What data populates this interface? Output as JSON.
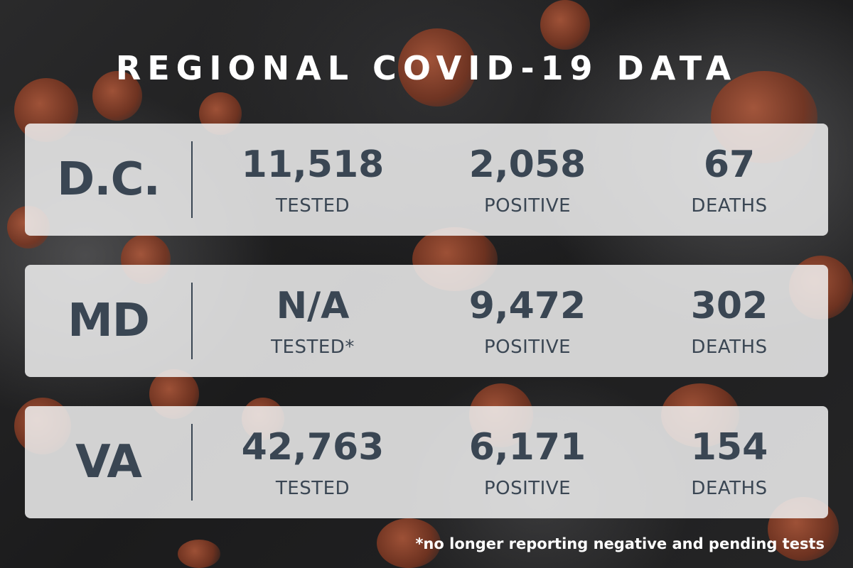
{
  "title": "REGIONAL COVID-19 DATA",
  "regions": [
    {
      "name": "D.C.",
      "stats": [
        {
          "value": "11,518",
          "label": "TESTED"
        },
        {
          "value": "2,058",
          "label": "POSITIVE"
        },
        {
          "value": "67",
          "label": "DEATHS"
        }
      ]
    },
    {
      "name": "MD",
      "stats": [
        {
          "value": "N/A",
          "label": "TESTED*"
        },
        {
          "value": "9,472",
          "label": "POSITIVE"
        },
        {
          "value": "302",
          "label": "DEATHS"
        }
      ]
    },
    {
      "name": "VA",
      "stats": [
        {
          "value": "42,763",
          "label": "TESTED"
        },
        {
          "value": "6,171",
          "label": "POSITIVE"
        },
        {
          "value": "154",
          "label": "DEATHS"
        }
      ]
    }
  ],
  "footnote": "*no longer reporting negative and pending tests",
  "colors": {
    "text_dark": "#3a4653",
    "panel": "#f0f0f0",
    "title": "#ffffff",
    "accent_virus": "#b3593a"
  }
}
